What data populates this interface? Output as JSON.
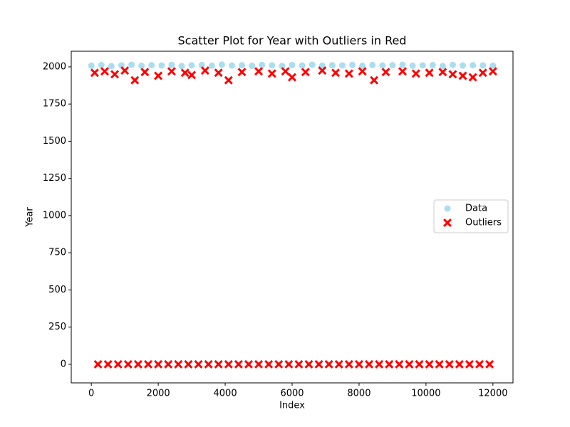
{
  "chart_data": {
    "type": "scatter",
    "title": "Scatter Plot for Year with Outliers in Red",
    "xlabel": "Index",
    "ylabel": "Year",
    "xlim": [
      -600,
      12600
    ],
    "ylim": [
      -125,
      2105
    ],
    "xticks": [
      0,
      2000,
      4000,
      6000,
      8000,
      10000,
      12000
    ],
    "yticks": [
      0,
      250,
      500,
      750,
      1000,
      1250,
      1500,
      1750,
      2000
    ],
    "legend": "center right",
    "series": [
      {
        "name": "Data",
        "color": "#87ceeb",
        "marker": "circle",
        "x": [
          0,
          300,
          600,
          900,
          1200,
          1500,
          1800,
          2100,
          2400,
          2700,
          3000,
          3300,
          3600,
          3900,
          4200,
          4500,
          4800,
          5100,
          5400,
          5700,
          6000,
          6300,
          6600,
          6900,
          7200,
          7500,
          7800,
          8100,
          8400,
          8700,
          9000,
          9300,
          9600,
          9900,
          10200,
          10500,
          10800,
          11100,
          11400,
          11700,
          12000
        ],
        "values": [
          2008,
          2012,
          2005,
          2010,
          2014,
          2007,
          2011,
          2009,
          2013,
          2006,
          2010,
          2012,
          2008,
          2015,
          2009,
          2011,
          2007,
          2013,
          2010,
          2006,
          2012,
          2009,
          2014,
          2008,
          2011,
          2010,
          2013,
          2007,
          2012,
          2009,
          2011,
          2014,
          2008,
          2010,
          2012,
          2006,
          2013,
          2009,
          2011,
          2010,
          2008
        ]
      },
      {
        "name": "Outliers",
        "color": "#ff0000",
        "marker": "x",
        "x": [
          100,
          400,
          700,
          1000,
          1300,
          1600,
          2000,
          2400,
          2800,
          3000,
          3400,
          3800,
          4100,
          4500,
          5000,
          5400,
          5800,
          6000,
          6400,
          6900,
          7300,
          7700,
          8100,
          8450,
          8800,
          9300,
          9700,
          10100,
          10500,
          10800,
          11100,
          11400,
          11700,
          12000,
          200,
          500,
          800,
          1100,
          1400,
          1700,
          2000,
          2300,
          2600,
          2900,
          3200,
          3500,
          3800,
          4100,
          4400,
          4700,
          5000,
          5300,
          5600,
          5900,
          6200,
          6500,
          6800,
          7100,
          7400,
          7700,
          8000,
          8300,
          8600,
          8900,
          9200,
          9500,
          9800,
          10100,
          10400,
          10700,
          11000,
          11300,
          11600,
          11900
        ],
        "values": [
          1960,
          1970,
          1950,
          1975,
          1910,
          1965,
          1940,
          1970,
          1960,
          1945,
          1975,
          1960,
          1910,
          1965,
          1970,
          1955,
          1970,
          1930,
          1965,
          1975,
          1960,
          1955,
          1970,
          1910,
          1965,
          1970,
          1955,
          1960,
          1965,
          1950,
          1940,
          1930,
          1960,
          1970,
          0,
          0,
          0,
          0,
          0,
          0,
          0,
          0,
          0,
          0,
          0,
          0,
          0,
          0,
          0,
          0,
          0,
          0,
          0,
          0,
          0,
          0,
          0,
          0,
          0,
          0,
          0,
          0,
          0,
          0,
          0,
          0,
          0,
          0,
          0,
          0,
          0,
          0,
          0,
          0
        ]
      }
    ]
  }
}
